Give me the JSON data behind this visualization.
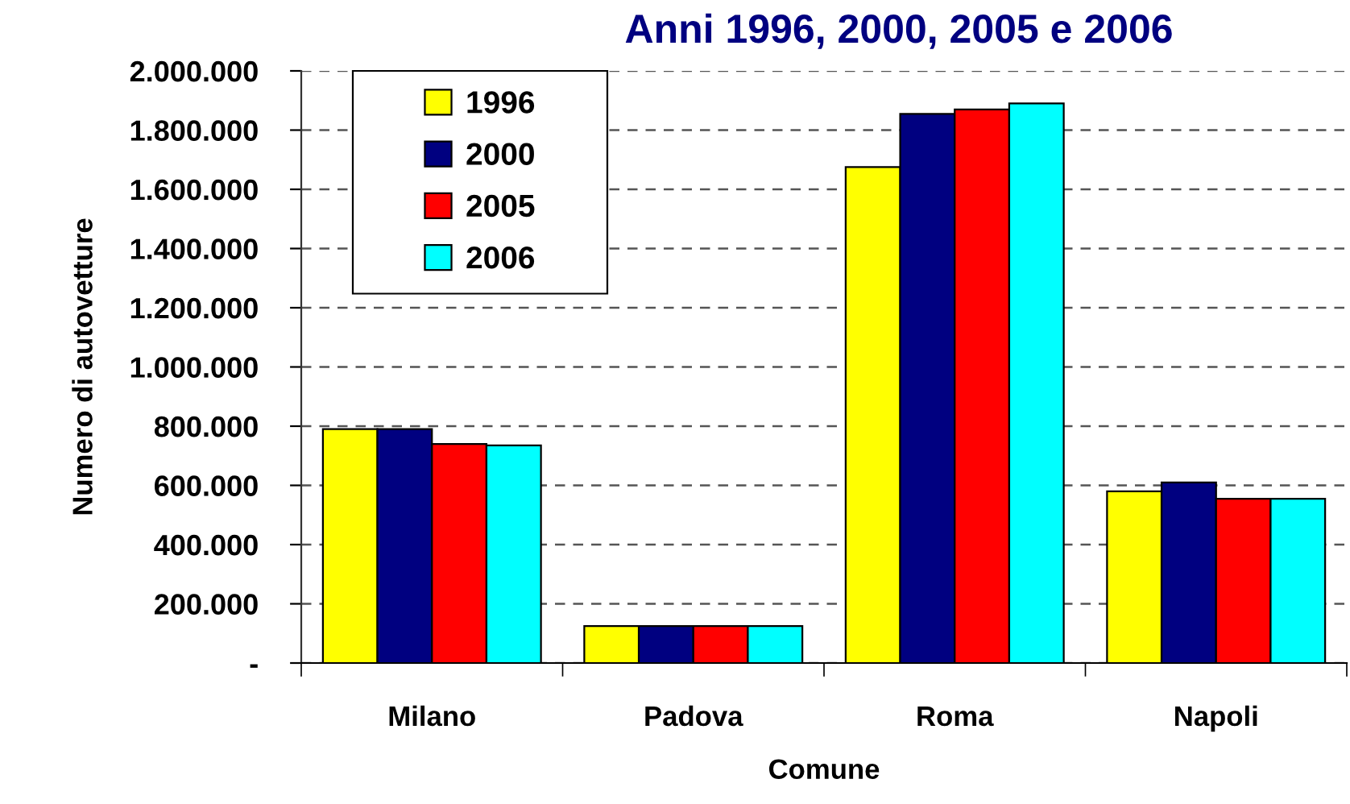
{
  "chart_data": {
    "type": "bar",
    "title": "Anni 1996, 2000, 2005 e 2006",
    "xlabel": "Comune",
    "ylabel": "Numero di autovetture",
    "categories": [
      "Milano",
      "Padova",
      "Roma",
      "Napoli"
    ],
    "series": [
      {
        "name": "1996",
        "color": "#ffff00",
        "values": [
          790000,
          125000,
          1675000,
          580000
        ]
      },
      {
        "name": "2000",
        "color": "#000080",
        "values": [
          790000,
          125000,
          1855000,
          610000
        ]
      },
      {
        "name": "2005",
        "color": "#ff0000",
        "values": [
          740000,
          125000,
          1870000,
          555000
        ]
      },
      {
        "name": "2006",
        "color": "#00ffff",
        "values": [
          735000,
          125000,
          1890000,
          555000
        ]
      }
    ],
    "ylim": [
      0,
      2000000
    ],
    "yticks": [
      {
        "value": 0,
        "label": "-"
      },
      {
        "value": 200000,
        "label": "200.000"
      },
      {
        "value": 400000,
        "label": "400.000"
      },
      {
        "value": 600000,
        "label": "600.000"
      },
      {
        "value": 800000,
        "label": "800.000"
      },
      {
        "value": 1000000,
        "label": "1.000.000"
      },
      {
        "value": 1200000,
        "label": "1.200.000"
      },
      {
        "value": 1400000,
        "label": "1.400.000"
      },
      {
        "value": 1600000,
        "label": "1.600.000"
      },
      {
        "value": 1800000,
        "label": "1.800.000"
      },
      {
        "value": 2000000,
        "label": "2.000.000"
      }
    ],
    "grid": "y",
    "legend": "top left"
  }
}
